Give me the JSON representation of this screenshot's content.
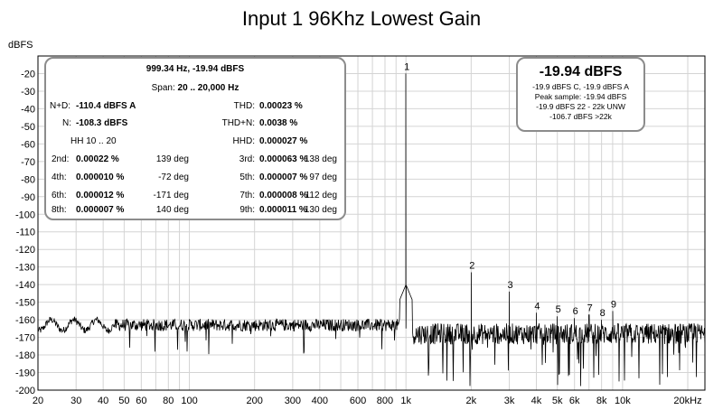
{
  "chart_data": {
    "type": "line",
    "title": "Input 1 96Khz Lowest Gain",
    "ylabel": "dBFS",
    "xscale": "log",
    "xlim": [
      20,
      24000
    ],
    "ylim": [
      -200,
      -10
    ],
    "grid": true,
    "x_ticks": [
      {
        "v": 20,
        "t": "20"
      },
      {
        "v": 30,
        "t": "30"
      },
      {
        "v": 40,
        "t": "40"
      },
      {
        "v": 50,
        "t": "50"
      },
      {
        "v": 60,
        "t": "60"
      },
      {
        "v": 80,
        "t": "80"
      },
      {
        "v": 100,
        "t": "100"
      },
      {
        "v": 200,
        "t": "200"
      },
      {
        "v": 300,
        "t": "300"
      },
      {
        "v": 400,
        "t": "400"
      },
      {
        "v": 600,
        "t": "600"
      },
      {
        "v": 800,
        "t": "800"
      },
      {
        "v": 1000,
        "t": "1k"
      },
      {
        "v": 2000,
        "t": "2k"
      },
      {
        "v": 3000,
        "t": "3k"
      },
      {
        "v": 4000,
        "t": "4k"
      },
      {
        "v": 5000,
        "t": "5k"
      },
      {
        "v": 6000,
        "t": "6k"
      },
      {
        "v": 8000,
        "t": "8k"
      },
      {
        "v": 10000,
        "t": "10k"
      },
      {
        "v": 20000,
        "t": "20kHz"
      }
    ],
    "y_ticks": [
      -20,
      -30,
      -40,
      -50,
      -60,
      -70,
      -80,
      -90,
      -100,
      -110,
      -120,
      -130,
      -140,
      -150,
      -160,
      -170,
      -180,
      -190,
      -200
    ],
    "series": [
      {
        "values_approx": "noise floor approx -163 dBFS below 1 kHz, approx -168 dBFS (broadband, to -200) above 1 kHz",
        "color": "#000000",
        "peaks": [
          {
            "label": "1",
            "f": 999.34,
            "db": -19.94
          },
          {
            "label": "2",
            "f": 2000,
            "db": -133
          },
          {
            "label": "3",
            "f": 3000,
            "db": -144
          },
          {
            "label": "4",
            "f": 4000,
            "db": -156
          },
          {
            "label": "5",
            "f": 5000,
            "db": -158
          },
          {
            "label": "6",
            "f": 6000,
            "db": -159
          },
          {
            "label": "7",
            "f": 7000,
            "db": -157
          },
          {
            "label": "8",
            "f": 8000,
            "db": -160
          },
          {
            "label": "9",
            "f": 9000,
            "db": -155
          }
        ]
      }
    ]
  },
  "stats": {
    "header": "999.34 Hz, -19.94 dBFS",
    "span_label": "Span:",
    "span_value": "20 .. 20,000 Hz",
    "nd_label": "N+D:",
    "nd_value": "-110.4 dBFS A",
    "thd_label": "THD:",
    "thd_value": "0.00023 %",
    "n_label": "N:",
    "n_value": "-108.3 dBFS",
    "thdn_label": "THD+N:",
    "thdn_value": "0.0038 %",
    "hh_label": "HH 10 .. 20",
    "hhd_label": "HHD:",
    "hhd_value": "0.000027 %",
    "harmonics": [
      {
        "l1": "2nd:",
        "v1": "0.00022 %",
        "d1": "139 deg",
        "l2": "3rd:",
        "v2": "0.000063 %",
        "d2": "138 deg"
      },
      {
        "l1": "4th:",
        "v1": "0.000010 %",
        "d1": "-72 deg",
        "l2": "5th:",
        "v2": "0.000007 %",
        "d2": "97 deg"
      },
      {
        "l1": "6th:",
        "v1": "0.000012 %",
        "d1": "-171 deg",
        "l2": "7th:",
        "v2": "0.000008 %",
        "d2": "112 deg"
      },
      {
        "l1": "8th:",
        "v1": "0.000007 %",
        "d1": "140 deg",
        "l2": "9th:",
        "v2": "0.000011 %",
        "d2": "130 deg"
      }
    ]
  },
  "level": {
    "main": "-19.94 dBFS",
    "line1": "-19.9 dBFS C, -19.9 dBFS A",
    "line2": "Peak sample: -19.94 dBFS",
    "line3": "-19.9 dBFS 22 - 22k UNW",
    "line4": "-106.7 dBFS >22k"
  }
}
